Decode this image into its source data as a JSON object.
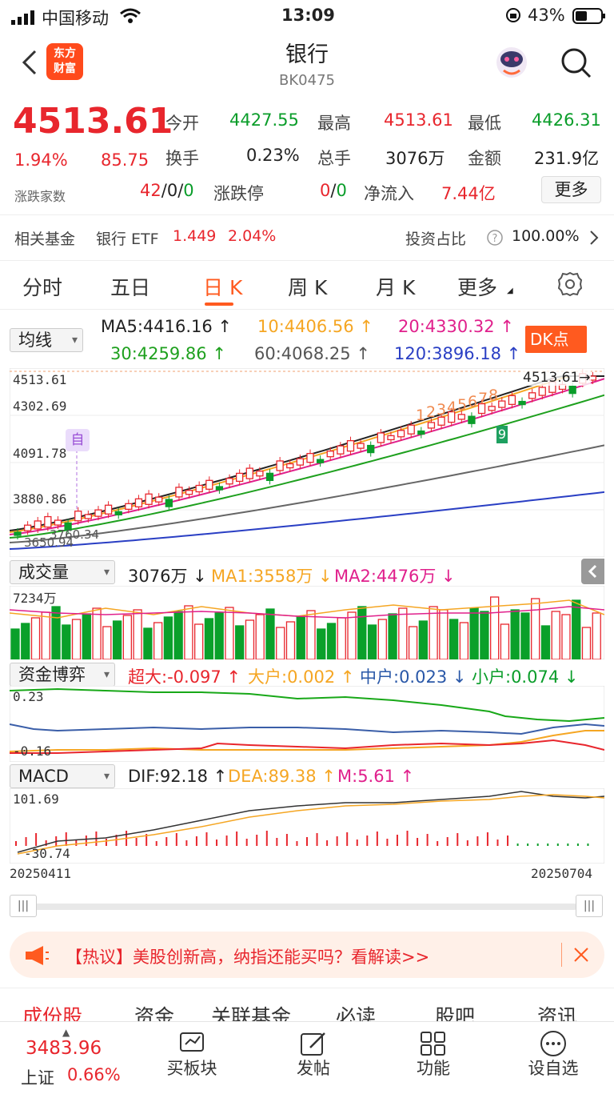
{
  "status": {
    "carrier": "中国移动",
    "time": "13:09",
    "battery": "43%"
  },
  "nav": {
    "title": "银行",
    "code": "BK0475",
    "logo_line1": "东方",
    "logo_line2": "财富"
  },
  "quote": {
    "price": "4513.61",
    "change_pct": "1.94%",
    "change": "85.75",
    "count_label": "涨跌家数",
    "open_label": "今开",
    "open": "4427.55",
    "high_label": "最高",
    "high": "4513.61",
    "low_label": "最低",
    "low": "4426.31",
    "turnover_label": "换手",
    "turnover": "0.23%",
    "volume_label": "总手",
    "volume": "3076万",
    "amount_label": "金额",
    "amount": "231.9亿",
    "counts_up": "42",
    "counts_sep1": "/",
    "counts_flat": "0",
    "counts_sep2": "/",
    "counts_down": "0",
    "limit_label": "涨跌停",
    "limit_up": "0",
    "limit_sep": "/",
    "limit_down": "0",
    "netflow_label": "净流入",
    "netflow": "7.44亿",
    "more": "更多"
  },
  "fund": {
    "label": "相关基金",
    "name": "银行 ETF",
    "price": "1.449",
    "pct": "2.04%",
    "ratio_label": "投资占比",
    "ratio": "100.00%"
  },
  "tabs": [
    "分时",
    "五日",
    "日 K",
    "周 K",
    "月 K",
    "更多"
  ],
  "ma": {
    "select": "均线",
    "ma5": "MA5:4416.16 ↑",
    "ma10": "10:4406.56 ↑",
    "ma20": "20:4330.32 ↑",
    "ma30": "30:4259.86 ↑",
    "ma60": "60:4068.25 ↑",
    "ma120": "120:3896.18 ↑",
    "dk": "DK点"
  },
  "kchart": {
    "ticks": [
      "4513.61",
      "4302.69",
      "4091.78",
      "3880.86"
    ],
    "last_label": "4513.61→",
    "low_label": "3650.94",
    "low_label_b": "3760.34",
    "marker": "自",
    "seq": [
      "1",
      "2",
      "3",
      "4",
      "5",
      "6",
      "7",
      "8"
    ],
    "nine": "9"
  },
  "vol": {
    "select": "成交量",
    "value": "3076万 ↓",
    "ma1": "MA1:3558万 ↓",
    "ma2": "MA2:4476万 ↓",
    "max": "7234万"
  },
  "flow": {
    "select": "资金博弈",
    "big": "超大:-0.097 ↑",
    "large": "大户:0.002 ↑",
    "mid": "中户:0.023 ↓",
    "small": "小户:0.074 ↓",
    "top": "0.23",
    "bottom": "-0.16"
  },
  "macd": {
    "select": "MACD",
    "dif": "DIF:92.18 ↑",
    "dea": "DEA:89.38 ↑",
    "m": "M:5.61 ↑",
    "top": "101.69",
    "bottom": "-30.74"
  },
  "dates": {
    "start": "20250411",
    "end": "20250704"
  },
  "news": {
    "text": "【热议】美股创新高，纳指还能买吗？看解读>>"
  },
  "subtabs": [
    "成份股",
    "资金",
    "关联基金",
    "必读",
    "股吧",
    "资讯"
  ],
  "bottom": {
    "index_value": "3483.96",
    "index_name": "上证",
    "index_pct": "0.66%",
    "buy": "买板块",
    "post": "发帖",
    "func": "功能",
    "watch": "设自选"
  },
  "colors": {
    "up": "#e8262d",
    "down": "#0a9d2a",
    "accent": "#ff5a1f",
    "ma5": "#222222",
    "ma10": "#f5a623",
    "ma20": "#e0208c",
    "ma30": "#1ea01e",
    "ma60": "#666666",
    "ma120": "#2a3fc4"
  }
}
